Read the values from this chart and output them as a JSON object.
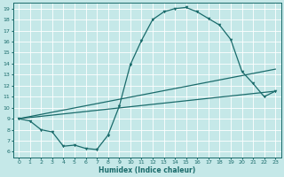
{
  "title": "",
  "xlabel": "Humidex (Indice chaleur)",
  "bg_color": "#c5e8e8",
  "grid_color": "#ffffff",
  "line_color": "#1a6b6b",
  "xlim": [
    -0.5,
    23.5
  ],
  "ylim": [
    5.5,
    19.5
  ],
  "yticks": [
    6,
    7,
    8,
    9,
    10,
    11,
    12,
    13,
    14,
    15,
    16,
    17,
    18,
    19
  ],
  "xticks": [
    0,
    1,
    2,
    3,
    4,
    5,
    6,
    7,
    8,
    9,
    10,
    11,
    12,
    13,
    14,
    15,
    16,
    17,
    18,
    19,
    20,
    21,
    22,
    23
  ],
  "curve1_x": [
    0,
    1,
    2,
    3,
    4,
    5,
    6,
    7,
    8,
    9,
    10,
    11,
    12,
    13,
    14,
    15,
    16,
    17,
    18,
    19,
    20,
    21,
    22,
    23
  ],
  "curve1_y": [
    9.0,
    8.8,
    8.0,
    7.8,
    6.5,
    6.6,
    6.3,
    6.2,
    7.5,
    10.1,
    13.9,
    16.1,
    18.0,
    18.7,
    19.0,
    19.1,
    18.7,
    18.1,
    17.5,
    16.2,
    13.3,
    12.2,
    11.0,
    11.5
  ],
  "curve2_x": [
    0,
    23
  ],
  "curve2_y": [
    9.0,
    13.5
  ],
  "curve3_x": [
    0,
    23
  ],
  "curve3_y": [
    9.0,
    11.5
  ]
}
